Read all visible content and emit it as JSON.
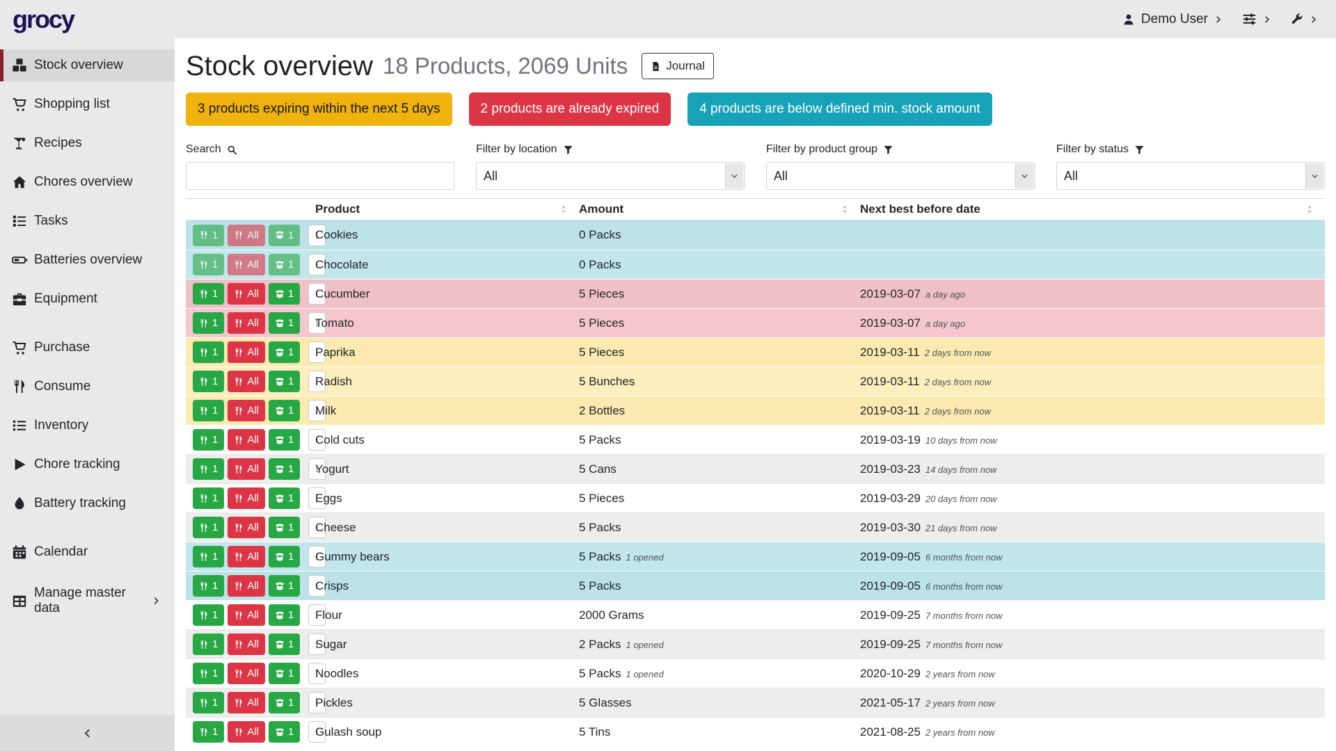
{
  "app": {
    "logo": "grocy"
  },
  "topbar": {
    "user_label": "Demo User",
    "user_icon": "user",
    "settings_icon": "sliders",
    "admin_icon": "wrench"
  },
  "sidebar": {
    "items": [
      {
        "label": "Stock overview",
        "icon": "boxes",
        "active": true
      },
      {
        "label": "Shopping list",
        "icon": "cart"
      },
      {
        "label": "Recipes",
        "icon": "martini"
      },
      {
        "label": "Chores overview",
        "icon": "home"
      },
      {
        "label": "Tasks",
        "icon": "tasks"
      },
      {
        "label": "Batteries overview",
        "icon": "battery"
      },
      {
        "label": "Equipment",
        "icon": "toolbox"
      },
      {
        "label": "Purchase",
        "icon": "cart",
        "gap": true
      },
      {
        "label": "Consume",
        "icon": "utensils"
      },
      {
        "label": "Inventory",
        "icon": "list"
      },
      {
        "label": "Chore tracking",
        "icon": "play"
      },
      {
        "label": "Battery tracking",
        "icon": "drop"
      },
      {
        "label": "Calendar",
        "icon": "calendar",
        "gap": true
      },
      {
        "label": "Manage master data",
        "icon": "table",
        "gap": true,
        "chevron": true
      }
    ]
  },
  "header": {
    "title": "Stock overview",
    "subtitle": "18 Products, 2069 Units",
    "journal_label": "Journal"
  },
  "alerts": [
    {
      "text": "3 products expiring within the next 5 days",
      "type": "warning"
    },
    {
      "text": "2 products are already expired",
      "type": "danger"
    },
    {
      "text": "4 products are below defined min. stock amount",
      "type": "info"
    }
  ],
  "filters": {
    "search_label": "Search",
    "location_label": "Filter by location",
    "product_group_label": "Filter by product group",
    "status_label": "Filter by status",
    "search_value": "",
    "all_option": "All"
  },
  "table": {
    "columns": [
      "Product",
      "Amount",
      "Next best before date"
    ],
    "row_buttons": {
      "consume_one": "1",
      "consume_all": "All",
      "open_one": "1"
    },
    "rows": [
      {
        "product": "Cookies",
        "amount": "0 Packs",
        "opened": "",
        "date": "",
        "note": "",
        "status": "info",
        "disabled": true
      },
      {
        "product": "Chocolate",
        "amount": "0 Packs",
        "opened": "",
        "date": "",
        "note": "",
        "status": "info",
        "disabled": true
      },
      {
        "product": "Cucumber",
        "amount": "5 Pieces",
        "opened": "",
        "date": "2019-03-07",
        "note": "a day ago",
        "status": "danger",
        "disabled": false
      },
      {
        "product": "Tomato",
        "amount": "5 Pieces",
        "opened": "",
        "date": "2019-03-07",
        "note": "a day ago",
        "status": "danger",
        "disabled": false
      },
      {
        "product": "Paprika",
        "amount": "5 Pieces",
        "opened": "",
        "date": "2019-03-11",
        "note": "2 days from now",
        "status": "warning",
        "disabled": false
      },
      {
        "product": "Radish",
        "amount": "5 Bunches",
        "opened": "",
        "date": "2019-03-11",
        "note": "2 days from now",
        "status": "warning",
        "disabled": false
      },
      {
        "product": "Milk",
        "amount": "2 Bottles",
        "opened": "",
        "date": "2019-03-11",
        "note": "2 days from now",
        "status": "warning",
        "disabled": false
      },
      {
        "product": "Cold cuts",
        "amount": "5 Packs",
        "opened": "",
        "date": "2019-03-19",
        "note": "10 days from now",
        "status": "",
        "disabled": false
      },
      {
        "product": "Yogurt",
        "amount": "5 Cans",
        "opened": "",
        "date": "2019-03-23",
        "note": "14 days from now",
        "status": "",
        "disabled": false
      },
      {
        "product": "Eggs",
        "amount": "5 Pieces",
        "opened": "",
        "date": "2019-03-29",
        "note": "20 days from now",
        "status": "",
        "disabled": false
      },
      {
        "product": "Cheese",
        "amount": "5 Packs",
        "opened": "",
        "date": "2019-03-30",
        "note": "21 days from now",
        "status": "",
        "disabled": false
      },
      {
        "product": "Gummy bears",
        "amount": "5 Packs",
        "opened": "1 opened",
        "date": "2019-09-05",
        "note": "6 months from now",
        "status": "info",
        "disabled": false
      },
      {
        "product": "Crisps",
        "amount": "5 Packs",
        "opened": "",
        "date": "2019-09-05",
        "note": "6 months from now",
        "status": "info",
        "disabled": false
      },
      {
        "product": "Flour",
        "amount": "2000 Grams",
        "opened": "",
        "date": "2019-09-25",
        "note": "7 months from now",
        "status": "",
        "disabled": false
      },
      {
        "product": "Sugar",
        "amount": "2 Packs",
        "opened": "1 opened",
        "date": "2019-09-25",
        "note": "7 months from now",
        "status": "",
        "disabled": false
      },
      {
        "product": "Noodles",
        "amount": "5 Packs",
        "opened": "1 opened",
        "date": "2020-10-29",
        "note": "2 years from now",
        "status": "",
        "disabled": false
      },
      {
        "product": "Pickles",
        "amount": "5 Glasses",
        "opened": "",
        "date": "2021-05-17",
        "note": "2 years from now",
        "status": "",
        "disabled": false
      },
      {
        "product": "Gulash soup",
        "amount": "5 Tins",
        "opened": "",
        "date": "2021-08-25",
        "note": "2 years from now",
        "status": "",
        "disabled": false
      }
    ]
  },
  "colors": {
    "warning": "#f0b30d",
    "danger": "#dc3545",
    "info": "#17a2b8",
    "success": "#28a745",
    "row_info": "#c2e6eb",
    "row_danger": "#f3c7cd",
    "row_warning": "#fdeebd",
    "sidebar_active_border": "#8c1f2a",
    "logo": "#1c1254"
  }
}
